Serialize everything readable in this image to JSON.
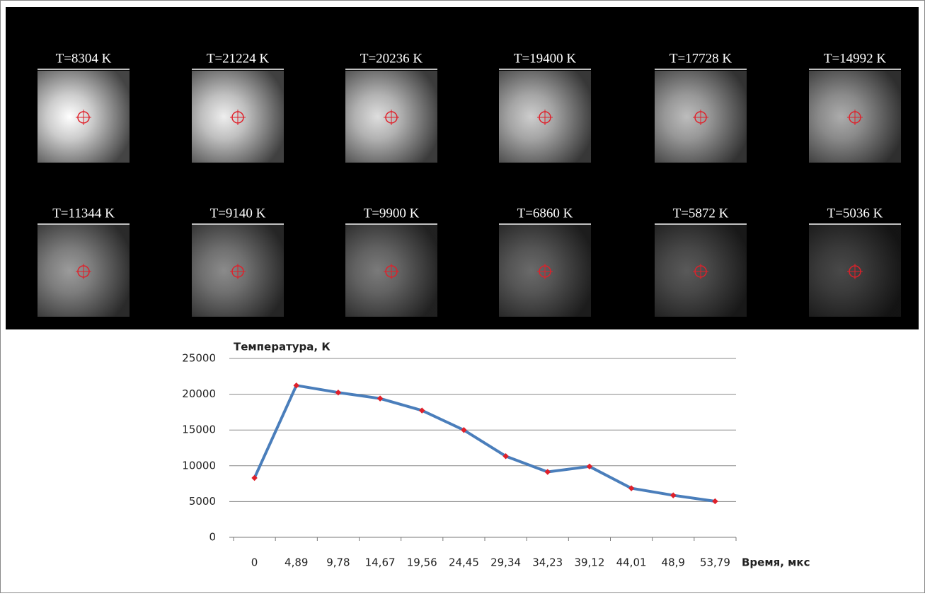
{
  "panel_labels": [
    "T=8304 K",
    "T=21224 K",
    "T=20236 K",
    "T=19400 K",
    "T=17728 K",
    "T=14992 K",
    "T=11344 K",
    "T=9140 K",
    "T=9900 K",
    "T=6860 K",
    "T=5872 K",
    "T=5036 K"
  ],
  "chart_data": {
    "type": "line",
    "y_label": "Температура,  К",
    "x_label": "Время,  мкс",
    "categories": [
      "0",
      "4,89",
      "9,78",
      "14,67",
      "19,56",
      "24,45",
      "29,34",
      "34,23",
      "39,12",
      "44,01",
      "48,9",
      "53,79"
    ],
    "values": [
      8304,
      21224,
      20236,
      19400,
      17728,
      14992,
      11344,
      9140,
      9900,
      6860,
      5872,
      5036
    ],
    "color": "#4a7ebb",
    "marker_color": "#e0202a",
    "ylim": [
      0,
      25000
    ],
    "yticks": [
      0,
      5000,
      10000,
      15000,
      20000,
      25000
    ],
    "grid": true
  }
}
